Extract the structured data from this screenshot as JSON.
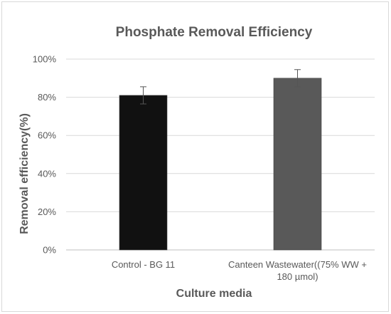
{
  "chart_data": {
    "type": "bar",
    "title": "Phosphate Removal Efficiency",
    "xlabel": "Culture media",
    "ylabel": "Removal efficiency(%)",
    "ylim": [
      0,
      100
    ],
    "yticks": [
      0,
      20,
      40,
      60,
      80,
      100
    ],
    "ytick_labels": [
      "0%",
      "20%",
      "40%",
      "60%",
      "80%",
      "100%"
    ],
    "categories": [
      "Control - BG 11",
      "Canteen Wastewater((75% WW + 180 µmol)"
    ],
    "category_lines": [
      [
        "Control - BG 11"
      ],
      [
        "Canteen Wastewater((75% WW +",
        "180 µmol)"
      ]
    ],
    "values": [
      81,
      90
    ],
    "error": [
      4.5,
      4.5
    ],
    "colors": [
      "#111111",
      "#595959"
    ],
    "grid": true
  }
}
